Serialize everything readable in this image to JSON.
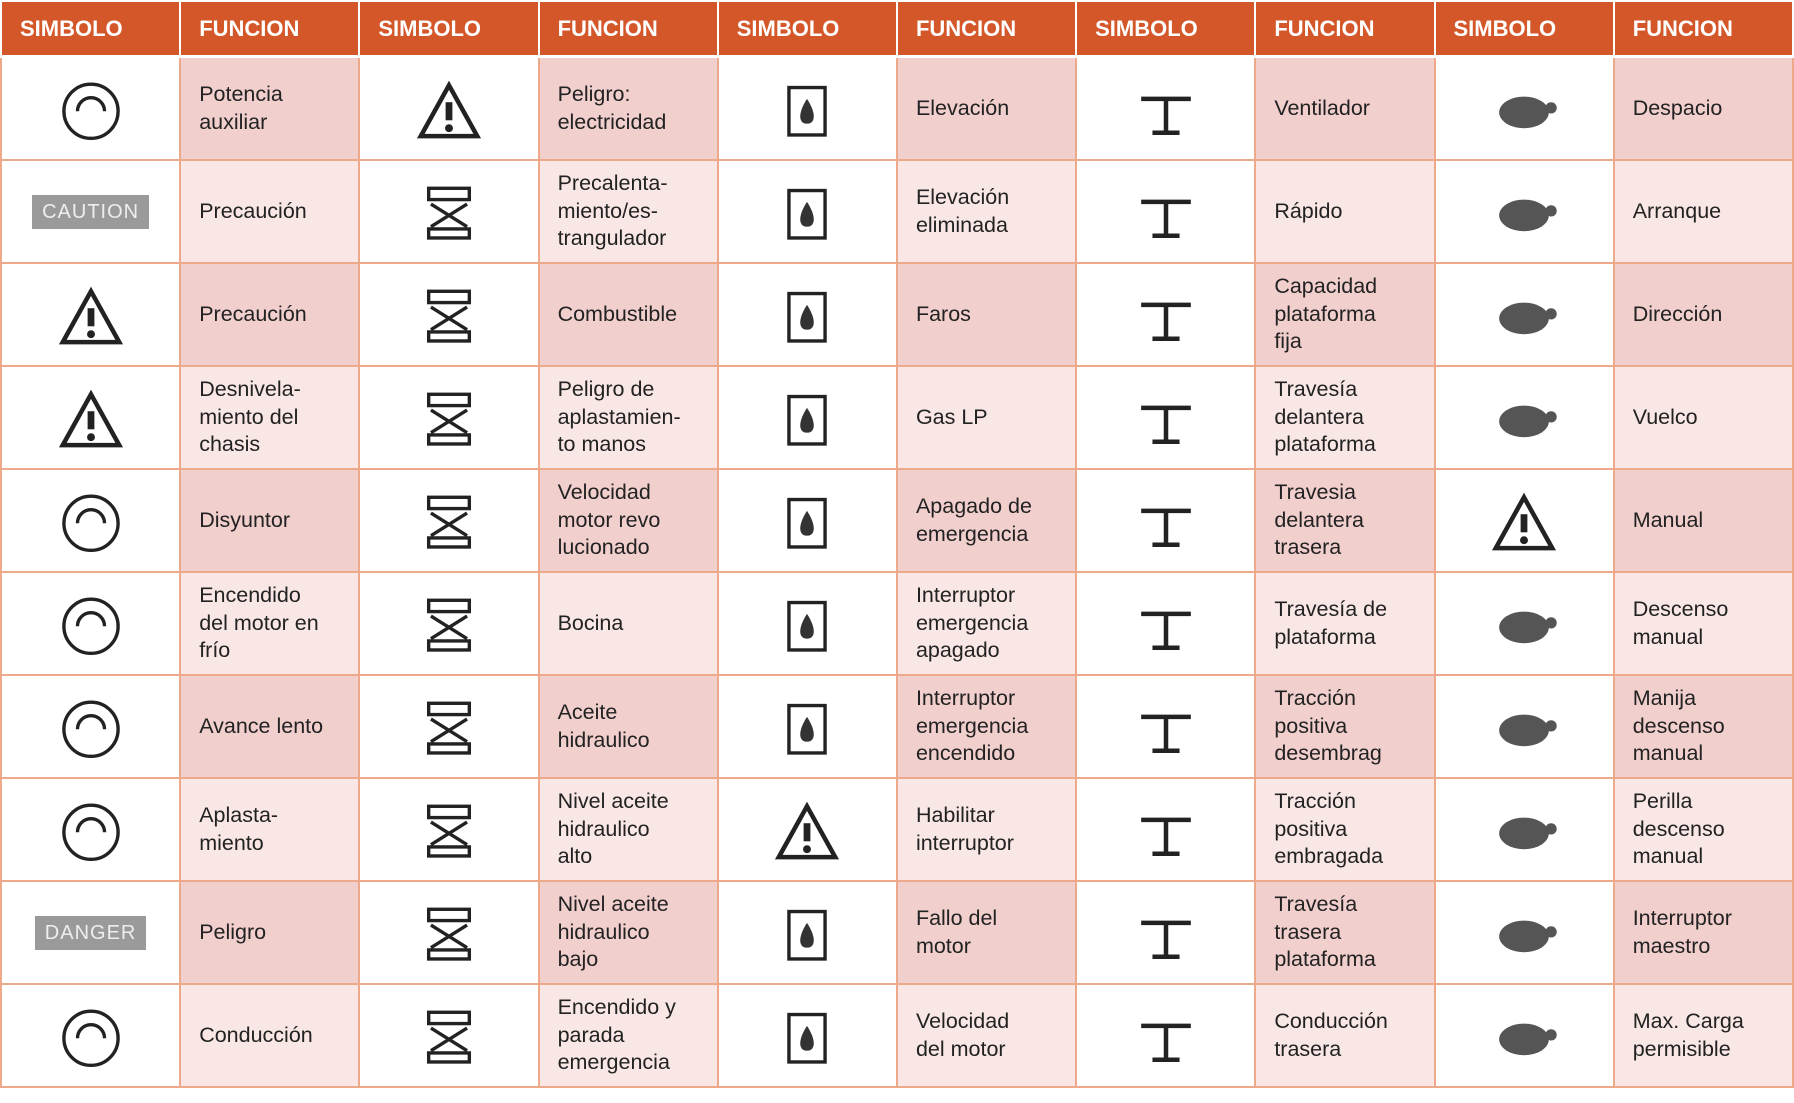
{
  "table": {
    "header": [
      "SIMBOLO",
      "FUNCION",
      "SIMBOLO",
      "FUNCION",
      "SIMBOLO",
      "FUNCION",
      "SIMBOLO",
      "FUNCION",
      "SIMBOLO",
      "FUNCION"
    ],
    "rows": [
      [
        {
          "function": "Potencia\nauxiliar"
        },
        {
          "function": "Peligro:\nelectricidad"
        },
        {
          "function": "Elevación"
        },
        {
          "function": "Ventilador"
        },
        {
          "function": "Despacio"
        }
      ],
      [
        {
          "symbol_text": "CAUTION",
          "function": "Precaución"
        },
        {
          "function": "Precalenta-\nmiento/es-\ntrangulador"
        },
        {
          "function": "Elevación\neliminada"
        },
        {
          "function": "Rápido"
        },
        {
          "function": "Arranque"
        }
      ],
      [
        {
          "function": "Precaución"
        },
        {
          "function": "Combustible"
        },
        {
          "function": "Faros"
        },
        {
          "function": "Capacidad\nplataforma\nfija"
        },
        {
          "function": "Dirección"
        }
      ],
      [
        {
          "function": "Desnivela-\nmiento del\nchasis"
        },
        {
          "function": "Peligro de\naplastamien-\nto manos"
        },
        {
          "function": "Gas LP"
        },
        {
          "function": "Travesía\ndelantera\nplataforma"
        },
        {
          "function": "Vuelco"
        }
      ],
      [
        {
          "function": "Disyuntor"
        },
        {
          "function": "Velocidad\nmotor revo\nlucionado"
        },
        {
          "function": "Apagado de\nemergencia"
        },
        {
          "function": "Travesia\ndelantera\ntrasera"
        },
        {
          "function": "Manual"
        }
      ],
      [
        {
          "function": "Encendido\ndel motor en\nfrío"
        },
        {
          "function": "Bocina"
        },
        {
          "function": "Interruptor\nemergencia\napagado"
        },
        {
          "function": "Travesía de\nplataforma"
        },
        {
          "function": "Descenso\nmanual"
        }
      ],
      [
        {
          "function": "Avance lento"
        },
        {
          "function": "Aceite\nhidraulico"
        },
        {
          "function": "Interruptor\nemergencia\nencendido"
        },
        {
          "function": "Tracción\npositiva\ndesembrag"
        },
        {
          "function": "Manija\ndescenso\nmanual"
        }
      ],
      [
        {
          "function": "Aplasta-\nmiento"
        },
        {
          "function": "Nivel aceite\nhidraulico\nalto"
        },
        {
          "function": "Habilitar\ninterruptor"
        },
        {
          "function": "Tracción\npositiva\nembragada"
        },
        {
          "function": "Perilla\ndescenso\nmanual"
        }
      ],
      [
        {
          "symbol_text": "DANGER",
          "function": "Peligro"
        },
        {
          "function": "Nivel aceite\nhidraulico\nbajo"
        },
        {
          "function": "Fallo del\nmotor"
        },
        {
          "function": "Travesía\ntrasera\nplataforma"
        },
        {
          "function": "Interruptor\nmaestro"
        }
      ],
      [
        {
          "function": "Conducción"
        },
        {
          "function": "Encendido y\nparada\nemergencia"
        },
        {
          "function": "Velocidad\ndel motor"
        },
        {
          "function": "Conducción\ntrasera"
        },
        {
          "function": "Max. Carga\npermisible"
        }
      ]
    ]
  }
}
